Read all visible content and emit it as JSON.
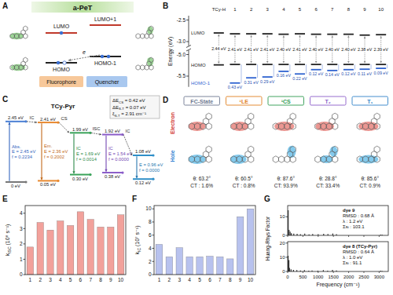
{
  "A": {
    "letter": "A",
    "title": "a-PeT",
    "levels": [
      "LUMO",
      "LUMO+1",
      "HOMO",
      "HOMO-1"
    ],
    "electron": "e",
    "groups": [
      "Fluorophore",
      "Quencher"
    ]
  },
  "C": {
    "letter": "C",
    "title": "TCy-Pyr",
    "notes": [
      [
        "ΔE",
        "CS",
        " = 0.42 eV"
      ],
      [
        "ΔE",
        "S-T",
        " = 0.07 eV"
      ],
      [
        "ξ",
        "S-T",
        " = 2.91 cm⁻¹"
      ]
    ],
    "levels": [
      {
        "energy": 2.45,
        "label": "2.45 eV",
        "color": "#4a7fd4"
      },
      {
        "energy": 0,
        "label": "0 eV",
        "color": "#777777"
      },
      {
        "energy": 2.41,
        "label": "2.41 eV",
        "color": "#e8892f"
      },
      {
        "energy": 0.05,
        "label": "0.05 eV",
        "color": "#e8892f"
      },
      {
        "energy": 1.99,
        "label": "1.99 eV",
        "color": "#3aa35a"
      },
      {
        "energy": 0.3,
        "label": "0.30 eV",
        "color": "#3aa35a"
      },
      {
        "energy": 1.92,
        "label": "1.92 eV",
        "color": "#8a5cc8"
      },
      {
        "energy": 0.38,
        "label": "0.38 eV",
        "color": "#8a5cc8"
      },
      {
        "energy": 1.08,
        "label": "1.08 eV",
        "color": "#2f8fc8"
      },
      {
        "energy": 0.12,
        "label": "0.12 eV",
        "color": "#2f8fc8"
      }
    ],
    "transitions": [
      {
        "name": "Abs.",
        "E": "E = 2.45 eV",
        "f": "f = 0.2234",
        "color": "#3567c0"
      },
      {
        "name": "Em.",
        "E": "E = 2.36 eV",
        "f": "f = 0.2002",
        "color": "#c2691a"
      },
      {
        "name": "IC",
        "E": "E = 1.69 eV",
        "f": "f = 0.0014",
        "color": "#2e8a4a"
      },
      {
        "name": "IC",
        "E": "E = 1.54 eV",
        "f": "f = 0.0000",
        "color": "#7447b3"
      },
      {
        "E": "E = 0.96 eV",
        "f": "f = 0.0000",
        "color": "#2a78b0"
      }
    ],
    "steps": [
      "IC",
      "CS",
      "ISC",
      "IC"
    ]
  },
  "D": {
    "letter": "D",
    "rows": [
      "Electron",
      "Hole"
    ],
    "states": [
      {
        "name": "FC-State",
        "color": "#6d7790",
        "theta": "θ: 63.2°",
        "ct": "CT : 1.6%"
      },
      {
        "name": "¹LE",
        "color": "#e0801f",
        "theta": "θ: 60.5°",
        "ct": "CT : 0.8%"
      },
      {
        "name": "¹CS",
        "color": "#2e9a4f",
        "theta": "θ: 87.6°",
        "ct": "CT: 93.9%"
      },
      {
        "name": "T₂",
        "color": "#8a5cc8",
        "theta": "θ: 28.8°",
        "ct": "CT: 33.4%"
      },
      {
        "name": "T₁",
        "color": "#2f82c8",
        "theta": "θ: 85.6°",
        "ct": "CT: 0.9%"
      }
    ]
  },
  "chart_data": [
    {
      "type": "energy_levels",
      "letter": "B",
      "ylabel": "Energy (eV)",
      "categories": [
        "TCy-H",
        "1",
        "2",
        "3",
        "4",
        "5",
        "6",
        "7",
        "8",
        "9",
        "10"
      ],
      "series": [
        {
          "name": "LUMO",
          "color": "#222222",
          "values": [
            -2.8,
            -2.82,
            -2.82,
            -2.82,
            -2.83,
            -2.82,
            -2.83,
            -2.83,
            -2.83,
            -2.85,
            -2.84
          ]
        },
        {
          "name": "HOMO",
          "color": "#222222",
          "values": [
            -5.24,
            -5.23,
            -5.23,
            -5.23,
            -5.23,
            -5.23,
            -5.23,
            -5.23,
            -5.23,
            -5.23,
            -5.23
          ]
        },
        {
          "name": "HOMO-1",
          "color": "#2f63d0",
          "values": [
            null,
            -5.66,
            -5.54,
            -5.52,
            -5.39,
            -5.45,
            -5.35,
            -5.37,
            -5.35,
            -5.34,
            -5.32
          ]
        }
      ],
      "gap_labels": [
        "2.44 eV",
        "2.41 eV",
        "2.41 eV",
        "2.41 eV",
        "2.40 eV",
        "2.41 eV",
        "2.40 eV",
        "2.40 eV",
        "2.40 eV",
        "2.38 eV",
        "2.39 eV"
      ],
      "split_labels": [
        null,
        "0.43 eV",
        "0.31 eV",
        "0.29 eV",
        "0.16 eV",
        "0.22 eV",
        "0.12 eV",
        "0.14 eV",
        "0.12 eV",
        "0.11 eV",
        "0.09 eV"
      ],
      "ylim": [
        -5.75,
        -2.4
      ],
      "y_break": [
        -4.9,
        -3.1
      ],
      "yticks": [
        -5.5,
        {
          "value": -5,
          "label": "-5.0"
        },
        {
          "value": -3,
          "label": "-3.0"
        },
        -2.5
      ]
    },
    {
      "type": "bar",
      "letter": "E",
      "ylabel": [
        "k",
        "ISC",
        " (10⁸ s⁻¹)"
      ],
      "categories": [
        "1",
        "2",
        "3",
        "4",
        "5",
        "6",
        "7",
        "8",
        "9",
        "10"
      ],
      "values": [
        1.8,
        3.4,
        2.9,
        3.5,
        3.2,
        4.1,
        3.6,
        3.1,
        3.1,
        3.9
      ],
      "color": "#f2a19b",
      "ylim": [
        0,
        4.5
      ],
      "yticks": [
        0,
        1,
        2,
        3,
        4
      ]
    },
    {
      "type": "bar",
      "letter": "F",
      "ylabel": [
        "k",
        "IC",
        " (10⁷ s⁻¹)"
      ],
      "categories": [
        "1",
        "2",
        "3",
        "4",
        "5",
        "6",
        "7",
        "8",
        "9",
        "10"
      ],
      "values": [
        4.6,
        2.7,
        4.1,
        2.7,
        2.7,
        2.8,
        2.7,
        2.4,
        8.8,
        10.0
      ],
      "color": "#b8c2ee",
      "ylim": [
        0,
        10.5
      ],
      "yticks": [
        0,
        2,
        4,
        6,
        8,
        10
      ]
    },
    {
      "type": "stem",
      "letter": "G",
      "ylabel": "Huang-Rhys Factor",
      "xlabel": "Frequency (cm⁻¹)",
      "xlim": [
        0,
        3300
      ],
      "xticks": [
        0,
        500,
        1000,
        1500,
        2000,
        2500,
        3000
      ],
      "series": [
        {
          "name": "dye 9",
          "notes": [
            "RMSD : 0.68 Å",
            "λ : 1.2 eV",
            "Σsᵢ : 103.1"
          ],
          "color": "#333333",
          "ylim": [
            0,
            16
          ],
          "yticks": [
            0,
            10
          ],
          "x": [
            18,
            45,
            80,
            120,
            200,
            310,
            420,
            560,
            700,
            820,
            1000,
            1180,
            1320,
            1480,
            1600,
            3050,
            3100
          ],
          "values": [
            13.5,
            3,
            2,
            1.2,
            1,
            0.8,
            0.6,
            0.9,
            0.5,
            0.7,
            0.6,
            0.8,
            0.7,
            1.0,
            0.6,
            0.4,
            0.3
          ]
        },
        {
          "name": "dye 8 (TCy-Pyr)",
          "notes": [
            "RMSD : 0.64 Å",
            "λ : 1.0 eV",
            "Σsᵢ : 91.1"
          ],
          "color": "#333333",
          "ylim": [
            0,
            21
          ],
          "yticks": [
            0,
            10,
            20
          ],
          "x": [
            15,
            40,
            60,
            110,
            190,
            300,
            420,
            550,
            690,
            800,
            990,
            1170,
            1310,
            1470,
            1600,
            3050,
            3100
          ],
          "values": [
            11,
            8,
            2.5,
            1.5,
            1.1,
            0.9,
            0.7,
            1,
            0.6,
            0.7,
            0.5,
            0.9,
            0.6,
            1.1,
            0.7,
            0.5,
            0.3
          ]
        }
      ]
    }
  ]
}
